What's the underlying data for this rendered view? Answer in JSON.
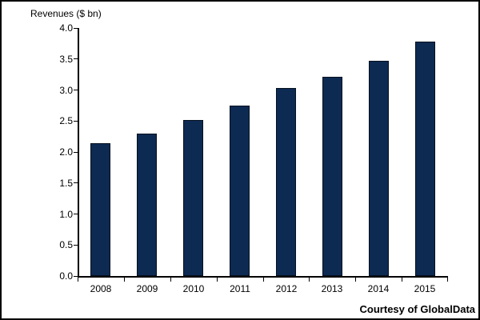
{
  "chart_data": {
    "type": "bar",
    "title": "Revenues ($ bn)",
    "categories": [
      "2008",
      "2009",
      "2010",
      "2011",
      "2012",
      "2013",
      "2014",
      "2015"
    ],
    "values": [
      2.14,
      2.3,
      2.51,
      2.75,
      3.03,
      3.21,
      3.47,
      3.78
    ],
    "xlabel": "",
    "ylabel": "Revenues ($ bn)",
    "ylim": [
      0,
      4
    ],
    "ytick_labels": [
      "0.0",
      "0.5",
      "1.0",
      "1.5",
      "2.0",
      "2.5",
      "3.0",
      "3.5",
      "4.0"
    ],
    "grid": false,
    "legend": "none",
    "bar_color": "#0d2a52",
    "bar_border_color": "#05101f",
    "axis_color": "#000000"
  },
  "footer": {
    "credit": "Courtesy of GlobalData"
  }
}
